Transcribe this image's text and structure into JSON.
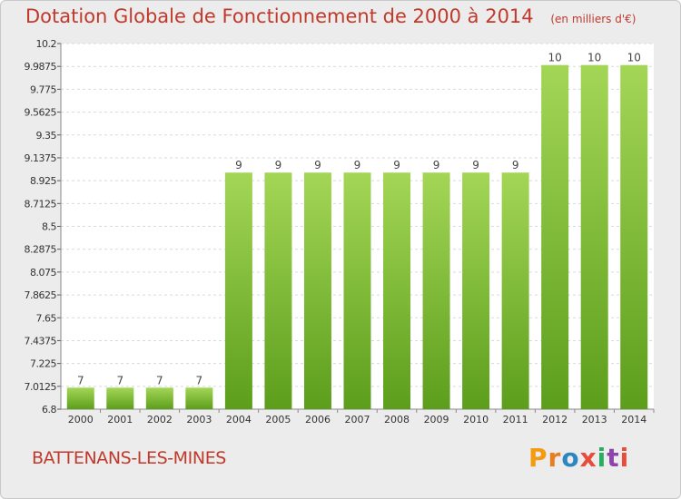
{
  "header": {
    "title": "Dotation Globale de Fonctionnement de 2000 à 2014",
    "unit": "(en milliers d'€)"
  },
  "footer": {
    "place": "BATTENANS-LES-MINES",
    "logo": "Proxiti"
  },
  "colors": {
    "bar_top": "#a4d656",
    "bar_bottom": "#5c9e1c",
    "title": "#c0392b",
    "plot_background": "#ffffff",
    "gridline": "#d9d9d9",
    "logo_letters": [
      "#f39c12",
      "#e67e22",
      "#2e86c1",
      "#e74c3c",
      "#27ae60",
      "#8e44ad",
      "#e74c3c"
    ]
  },
  "chart_data": {
    "type": "bar",
    "categories": [
      "2000",
      "2001",
      "2002",
      "2003",
      "2004",
      "2005",
      "2006",
      "2007",
      "2008",
      "2009",
      "2010",
      "2011",
      "2012",
      "2013",
      "2014"
    ],
    "values": [
      7,
      7,
      7,
      7,
      9,
      9,
      9,
      9,
      9,
      9,
      9,
      9,
      10,
      10,
      10
    ],
    "data_labels": [
      "7",
      "7",
      "7",
      "7",
      "9",
      "9",
      "9",
      "9",
      "9",
      "9",
      "9",
      "9",
      "10",
      "10",
      "10"
    ],
    "y_ticks": [
      "6.8",
      "7.0125",
      "7.225",
      "7.4375",
      "7.65",
      "7.8625",
      "8.075",
      "8.2875",
      "8.5",
      "8.7125",
      "8.925",
      "9.1375",
      "9.35",
      "9.5625",
      "9.775",
      "9.9875",
      "10.2"
    ],
    "ylim": [
      6.8,
      10.2
    ],
    "grid": true,
    "legend": "none"
  }
}
